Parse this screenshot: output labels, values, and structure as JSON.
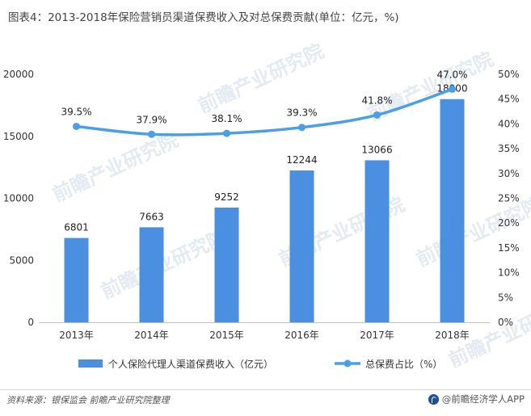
{
  "title": "图表4：2013-2018年保险营销员渠道保费收入及对总保费贡献(单位：亿元，%)",
  "footer": {
    "source": "资料来源：银保监会 前瞻产业研究院整理",
    "brand": "@前瞻经济学人APP"
  },
  "chart_data": {
    "type": "bar",
    "categories": [
      "2013年",
      "2014年",
      "2015年",
      "2016年",
      "2017年",
      "2018年"
    ],
    "series": [
      {
        "name": "个人保险代理人渠道保费收入（亿元）",
        "type": "bar",
        "axis": "left",
        "values": [
          6801,
          7663,
          9252,
          12244,
          13066,
          18000
        ],
        "labels": [
          "6801",
          "7663",
          "9252",
          "12244",
          "13066",
          "18000"
        ],
        "color": "#4a8fe0"
      },
      {
        "name": "总保费占比（%）",
        "type": "line",
        "axis": "right",
        "values": [
          39.5,
          37.9,
          38.1,
          39.3,
          41.8,
          47.0
        ],
        "labels": [
          "39.5%",
          "37.9%",
          "38.1%",
          "39.3%",
          "41.8%",
          "47.0%"
        ],
        "color": "#4a9fe8"
      }
    ],
    "y_left": {
      "min": 0,
      "max": 20000,
      "ticks": [
        "0",
        "5000",
        "10000",
        "15000",
        "20000"
      ]
    },
    "y_right": {
      "min": 0,
      "max": 50,
      "ticks": [
        "0%",
        "5%",
        "10%",
        "15%",
        "20%",
        "25%",
        "30%",
        "35%",
        "40%",
        "45%",
        "50%"
      ]
    },
    "grid": false,
    "legend": "bottom"
  }
}
